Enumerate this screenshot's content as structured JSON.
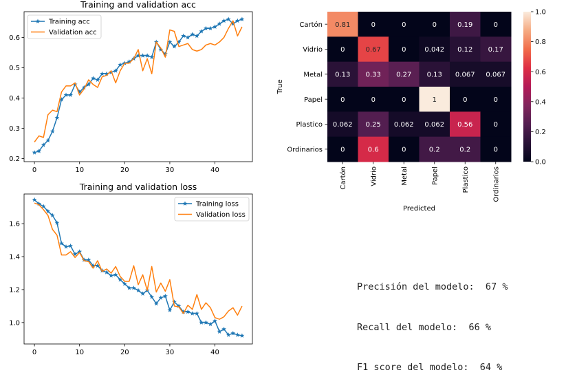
{
  "chart_data": [
    {
      "type": "line",
      "title": "Training and validation acc",
      "xlabel": "",
      "ylabel": "",
      "xlim": [
        -2.3,
        48.3
      ],
      "ylim": [
        0.19,
        0.685
      ],
      "xticks": [
        0,
        10,
        20,
        30,
        40
      ],
      "yticks": [
        0.2,
        0.3,
        0.4,
        0.5,
        0.6
      ],
      "ytick_labels": [
        "0.2",
        "0.3",
        "0.4",
        "0.5",
        "0.6"
      ],
      "legend_position": "upper-left",
      "series": [
        {
          "name": "Training acc",
          "color": "#1f77b4",
          "marker": "star",
          "values": [
            0.22,
            0.225,
            0.245,
            0.26,
            0.29,
            0.335,
            0.395,
            0.41,
            0.41,
            0.445,
            0.42,
            0.435,
            0.445,
            0.465,
            0.46,
            0.48,
            0.48,
            0.485,
            0.49,
            0.51,
            0.515,
            0.52,
            0.53,
            0.54,
            0.54,
            0.54,
            0.535,
            0.585,
            0.56,
            0.545,
            0.585,
            0.57,
            0.585,
            0.605,
            0.6,
            0.61,
            0.605,
            0.62,
            0.63,
            0.63,
            0.635,
            0.645,
            0.655,
            0.66,
            0.645,
            0.655,
            0.66
          ]
        },
        {
          "name": "Validation acc",
          "color": "#ff7f0e",
          "marker": "none",
          "values": [
            0.255,
            0.275,
            0.27,
            0.345,
            0.36,
            0.355,
            0.42,
            0.44,
            0.44,
            0.45,
            0.41,
            0.43,
            0.46,
            0.445,
            0.435,
            0.47,
            0.475,
            0.49,
            0.45,
            0.49,
            0.515,
            0.515,
            0.53,
            0.56,
            0.49,
            0.53,
            0.48,
            0.585,
            0.565,
            0.535,
            0.625,
            0.62,
            0.57,
            0.575,
            0.58,
            0.56,
            0.555,
            0.56,
            0.575,
            0.58,
            0.575,
            0.585,
            0.6,
            0.63,
            0.655,
            0.605,
            0.635
          ]
        }
      ]
    },
    {
      "type": "line",
      "title": "Training and validation loss",
      "xlabel": "",
      "ylabel": "",
      "xlim": [
        -2.3,
        48.3
      ],
      "ylim": [
        0.87,
        1.78
      ],
      "xticks": [
        0,
        10,
        20,
        30,
        40
      ],
      "yticks": [
        1.0,
        1.2,
        1.4,
        1.6
      ],
      "ytick_labels": [
        "1.0",
        "1.2",
        "1.4",
        "1.6"
      ],
      "legend_position": "upper-right",
      "series": [
        {
          "name": "Training loss",
          "color": "#1f77b4",
          "marker": "star",
          "values": [
            1.745,
            1.72,
            1.705,
            1.675,
            1.65,
            1.605,
            1.48,
            1.46,
            1.465,
            1.415,
            1.43,
            1.38,
            1.38,
            1.345,
            1.345,
            1.315,
            1.305,
            1.285,
            1.29,
            1.26,
            1.235,
            1.21,
            1.21,
            1.195,
            1.175,
            1.195,
            1.155,
            1.115,
            1.15,
            1.16,
            1.075,
            1.125,
            1.1,
            1.065,
            1.065,
            1.055,
            1.055,
            1.0,
            1.0,
            0.99,
            1.01,
            0.945,
            0.96,
            0.925,
            0.935,
            0.925,
            0.92
          ]
        },
        {
          "name": "Validation loss",
          "color": "#ff7f0e",
          "marker": "none",
          "values": [
            1.725,
            1.715,
            1.685,
            1.65,
            1.565,
            1.53,
            1.41,
            1.41,
            1.43,
            1.395,
            1.425,
            1.375,
            1.37,
            1.33,
            1.375,
            1.31,
            1.325,
            1.3,
            1.34,
            1.28,
            1.25,
            1.25,
            1.345,
            1.23,
            1.29,
            1.195,
            1.34,
            1.185,
            1.24,
            1.19,
            1.26,
            1.1,
            1.095,
            1.055,
            1.105,
            1.08,
            1.17,
            1.08,
            1.12,
            1.09,
            1.03,
            1.02,
            1.035,
            1.07,
            1.09,
            1.045,
            1.1
          ]
        }
      ]
    },
    {
      "type": "heatmap",
      "title": "",
      "xlabel": "Predicted",
      "ylabel": "True",
      "row_labels": [
        "Cartón",
        "Vidrio",
        "Metal",
        "Papel",
        "Plastico",
        "Ordinarios"
      ],
      "col_labels": [
        "Cartón",
        "Vidrio",
        "Metal",
        "Papel",
        "Plastico",
        "Ordinarios"
      ],
      "cell_labels": [
        [
          "0.81",
          "0",
          "0",
          "0",
          "0.19",
          "0"
        ],
        [
          "0",
          "0.67",
          "0",
          "0.042",
          "0.12",
          "0.17"
        ],
        [
          "0.13",
          "0.33",
          "0.27",
          "0.13",
          "0.067",
          "0.067"
        ],
        [
          "0",
          "0",
          "0",
          "1",
          "0",
          "0"
        ],
        [
          "0.062",
          "0.25",
          "0.062",
          "0.062",
          "0.56",
          "0"
        ],
        [
          "0",
          "0.6",
          "0",
          "0.2",
          "0.2",
          "0"
        ]
      ],
      "values": [
        [
          0.81,
          0,
          0,
          0,
          0.19,
          0
        ],
        [
          0,
          0.67,
          0,
          0.042,
          0.12,
          0.17
        ],
        [
          0.13,
          0.33,
          0.27,
          0.13,
          0.067,
          0.067
        ],
        [
          0,
          0,
          0,
          1,
          0,
          0
        ],
        [
          0.062,
          0.25,
          0.062,
          0.062,
          0.56,
          0
        ],
        [
          0,
          0.6,
          0,
          0.2,
          0.2,
          0
        ]
      ],
      "vmin": 0,
      "vmax": 1,
      "colorbar_ticks": [
        0.0,
        0.2,
        0.4,
        0.6,
        0.8,
        1.0
      ],
      "colorbar_tick_labels": [
        "0.0",
        "0.2",
        "0.4",
        "0.6",
        "0.8",
        "1.0"
      ],
      "colormap": "rocket"
    }
  ],
  "metrics": {
    "precision": "Precisión del modelo:  67 %",
    "recall": "Recall del modelo:  66 %",
    "f1": "F1 score del modelo:  64 %"
  }
}
